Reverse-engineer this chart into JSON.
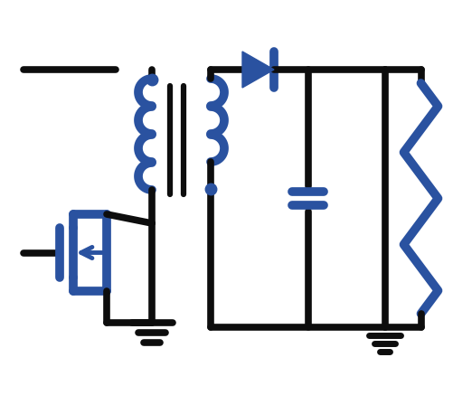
{
  "bg_color": "#ffffff",
  "line_color_dark": "#0d0d0d",
  "line_color_blue": "#1f3a7a",
  "line_color_blue2": "#2a52a0",
  "lw_main": 5.5,
  "lw_component": 7.0,
  "figsize": [
    5.01,
    4.37
  ],
  "dpi": 100
}
